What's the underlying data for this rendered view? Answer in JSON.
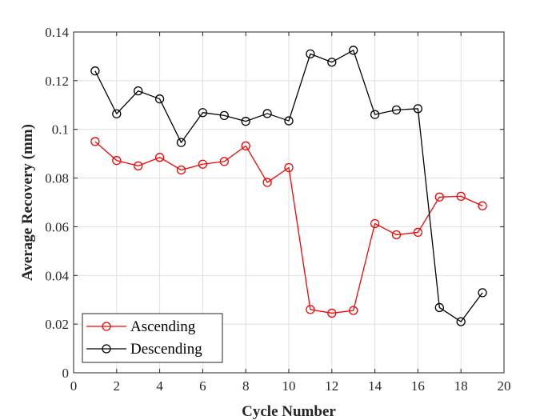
{
  "chart_data": {
    "type": "line",
    "xlabel": "Cycle Number",
    "ylabel": "Average Recovery (mm)",
    "xlim": [
      0,
      20
    ],
    "ylim": [
      0,
      0.14
    ],
    "xticks": [
      0,
      2,
      4,
      6,
      8,
      10,
      12,
      14,
      16,
      18,
      20
    ],
    "yticks": [
      0,
      0.02,
      0.04,
      0.06,
      0.08,
      0.1,
      0.12,
      0.14
    ],
    "xtick_labels": [
      "0",
      "2",
      "4",
      "6",
      "8",
      "10",
      "12",
      "14",
      "16",
      "18",
      "20"
    ],
    "ytick_labels": [
      "0",
      "0.02",
      "0.04",
      "0.06",
      "0.08",
      "0.1",
      "0.12",
      "0.14"
    ],
    "grid": true,
    "legend_position": "bottom-left",
    "marker": "open-circle",
    "x": [
      1,
      2,
      3,
      4,
      5,
      6,
      7,
      8,
      9,
      10,
      11,
      12,
      13,
      14,
      15,
      16,
      17,
      18,
      19
    ],
    "series": [
      {
        "name": "Ascending",
        "color": "#ff0000",
        "values": [
          0.095,
          0.0872,
          0.085,
          0.0885,
          0.0833,
          0.0857,
          0.0868,
          0.0932,
          0.0782,
          0.0843,
          0.026,
          0.0245,
          0.0256,
          0.0613,
          0.0567,
          0.0577,
          0.0722,
          0.0725,
          0.0686
        ]
      },
      {
        "name": "Descending",
        "color": "#000000",
        "values": [
          0.124,
          0.1064,
          0.1158,
          0.1125,
          0.0946,
          0.1069,
          0.1057,
          0.1033,
          0.1065,
          0.1035,
          0.131,
          0.1276,
          0.1325,
          0.1061,
          0.108,
          0.1085,
          0.0268,
          0.021,
          0.0329
        ]
      }
    ]
  }
}
